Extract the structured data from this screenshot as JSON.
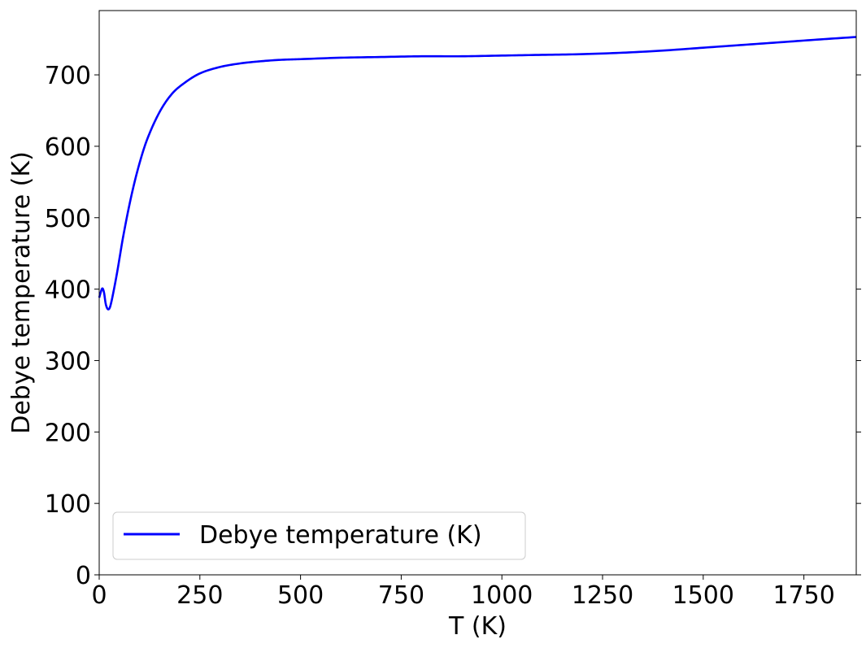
{
  "chart_data": {
    "type": "line",
    "title": "",
    "xlabel": "T (K)",
    "ylabel": "Debye temperature (K)",
    "xlim": [
      0,
      1880
    ],
    "ylim": [
      0,
      790
    ],
    "xticks": [
      0,
      250,
      500,
      750,
      1000,
      1250,
      1500,
      1750
    ],
    "yticks": [
      0,
      100,
      200,
      300,
      400,
      500,
      600,
      700
    ],
    "grid": false,
    "legend_position": "lower-left",
    "series": [
      {
        "name": "Debye temperature (K)",
        "color": "#0000ff",
        "x": [
          0,
          4,
          8,
          12,
          16,
          20,
          24,
          28,
          35,
          45,
          60,
          80,
          100,
          120,
          150,
          180,
          210,
          250,
          300,
          350,
          400,
          450,
          500,
          600,
          700,
          800,
          900,
          1000,
          1100,
          1200,
          1300,
          1400,
          1500,
          1600,
          1700,
          1800,
          1880
        ],
        "y": [
          388,
          396,
          401,
          395,
          380,
          373,
          372,
          377,
          395,
          425,
          475,
          531,
          576,
          611,
          648,
          673,
          688,
          702,
          711,
          716,
          719,
          721,
          722,
          724,
          725,
          726,
          726,
          727,
          728,
          729,
          731,
          734,
          738,
          742,
          746,
          750,
          753
        ]
      }
    ]
  }
}
